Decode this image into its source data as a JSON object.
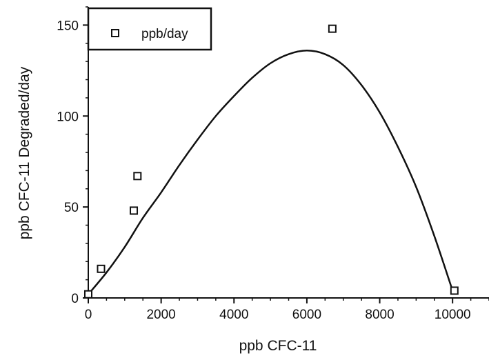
{
  "chart_data": {
    "type": "scatter",
    "title": "",
    "xlabel": "ppb  CFC-11",
    "ylabel": "ppb CFC-11 Degraded/day",
    "xlim": [
      0,
      11000
    ],
    "ylim": [
      0,
      160
    ],
    "x_ticks": [
      0,
      2000,
      4000,
      6000,
      8000,
      10000
    ],
    "y_ticks": [
      0,
      50,
      100,
      150
    ],
    "grid": false,
    "legend": {
      "position": "top-left",
      "entries": [
        "ppb/day"
      ]
    },
    "series": [
      {
        "name": "ppb/day",
        "marker": "open-square",
        "points": [
          {
            "x": 0,
            "y": 2
          },
          {
            "x": 350,
            "y": 16
          },
          {
            "x": 1250,
            "y": 48
          },
          {
            "x": 1350,
            "y": 67
          },
          {
            "x": 6700,
            "y": 148
          },
          {
            "x": 10050,
            "y": 4
          }
        ]
      }
    ],
    "fit_curve": {
      "points": [
        {
          "x": 0,
          "y": 2
        },
        {
          "x": 500,
          "y": 14
        },
        {
          "x": 1000,
          "y": 28
        },
        {
          "x": 1500,
          "y": 44
        },
        {
          "x": 2000,
          "y": 58
        },
        {
          "x": 2500,
          "y": 73
        },
        {
          "x": 3000,
          "y": 87
        },
        {
          "x": 3500,
          "y": 100
        },
        {
          "x": 4000,
          "y": 111
        },
        {
          "x": 4500,
          "y": 121
        },
        {
          "x": 5000,
          "y": 129
        },
        {
          "x": 5500,
          "y": 134
        },
        {
          "x": 6000,
          "y": 136
        },
        {
          "x": 6500,
          "y": 134
        },
        {
          "x": 7000,
          "y": 128
        },
        {
          "x": 7500,
          "y": 117
        },
        {
          "x": 8000,
          "y": 102
        },
        {
          "x": 8500,
          "y": 83
        },
        {
          "x": 9000,
          "y": 61
        },
        {
          "x": 9500,
          "y": 34
        },
        {
          "x": 10000,
          "y": 4
        }
      ]
    },
    "colors": {
      "ink": "#111111",
      "background": "#ffffff"
    }
  }
}
